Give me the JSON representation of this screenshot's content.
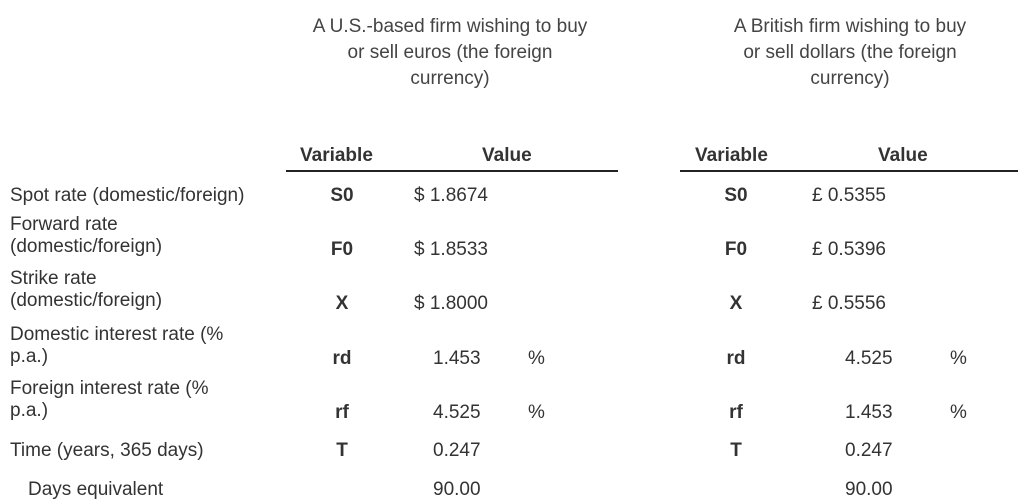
{
  "headings": {
    "left": [
      "A U.S.-based firm wishing to buy",
      "or sell euros (the foreign",
      "currency)"
    ],
    "right": [
      "A British firm wishing to buy",
      "or sell dollars (the foreign",
      "currency)"
    ]
  },
  "columns": {
    "variable": "Variable",
    "value": "Value"
  },
  "rows": [
    {
      "label": [
        "Spot rate (domestic/foreign)"
      ],
      "sym": "S0",
      "us_value": "$ 1.8674",
      "us_unit": "",
      "uk_value": "£ 0.5355",
      "uk_unit": ""
    },
    {
      "label": [
        "Forward rate",
        "(domestic/foreign)"
      ],
      "sym": "F0",
      "us_value": "$ 1.8533",
      "us_unit": "",
      "uk_value": "£ 0.5396",
      "uk_unit": ""
    },
    {
      "label": [
        "Strike rate",
        "(domestic/foreign)"
      ],
      "sym": "X",
      "us_value": "$ 1.8000",
      "us_unit": "",
      "uk_value": "£ 0.5556",
      "uk_unit": ""
    },
    {
      "label": [
        "Domestic interest rate (%",
        "p.a.)"
      ],
      "sym": "rd",
      "us_value": "1.453",
      "us_unit": "%",
      "uk_value": "4.525",
      "uk_unit": "%"
    },
    {
      "label": [
        "Foreign interest rate (%",
        "p.a.)"
      ],
      "sym": "rf",
      "us_value": "4.525",
      "us_unit": "%",
      "uk_value": "1.453",
      "uk_unit": "%"
    },
    {
      "label": [
        "Time (years, 365 days)"
      ],
      "sym": "T",
      "us_value": "0.247",
      "us_unit": "",
      "uk_value": "0.247",
      "uk_unit": ""
    },
    {
      "label": [
        "Days equivalent"
      ],
      "sym": "",
      "us_value": "90.00",
      "us_unit": "",
      "uk_value": "90.00",
      "uk_unit": ""
    }
  ]
}
